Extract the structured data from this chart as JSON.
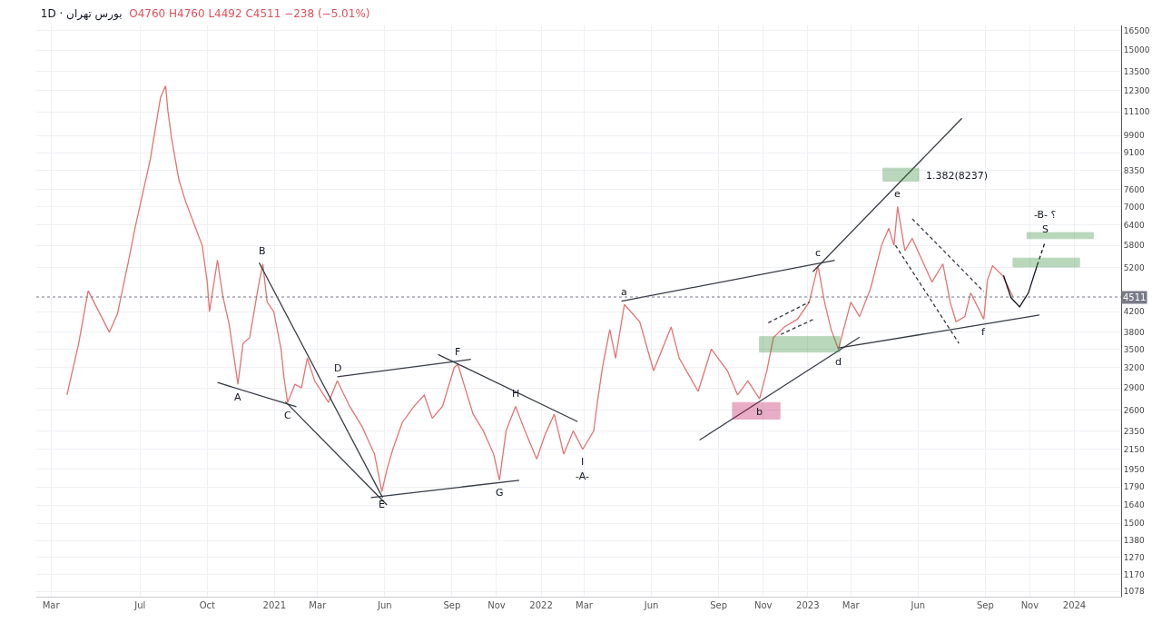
{
  "chart_data": {
    "type": "line",
    "title": "بورس تهران · 1D",
    "subtitle": "O4760 H4760 L4492 C4511 −238 (−5.01%)",
    "log": "y",
    "grid": true,
    "xlim": [
      "2020-02-10",
      "2024-03-05"
    ],
    "ylim": [
      1050,
      16900
    ],
    "xticks": [
      {
        "value": "2020-03-01",
        "label": "Mar"
      },
      {
        "value": "2020-07-01",
        "label": "Jul"
      },
      {
        "value": "2020-10-01",
        "label": "Oct"
      },
      {
        "value": "2021-01-01",
        "label": "2021"
      },
      {
        "value": "2021-03-01",
        "label": "Mar"
      },
      {
        "value": "2021-06-01",
        "label": "Jun"
      },
      {
        "value": "2021-09-01",
        "label": "Sep"
      },
      {
        "value": "2021-11-01",
        "label": "Nov"
      },
      {
        "value": "2022-01-01",
        "label": "2022"
      },
      {
        "value": "2022-03-01",
        "label": "Mar"
      },
      {
        "value": "2022-06-01",
        "label": "Jun"
      },
      {
        "value": "2022-09-01",
        "label": "Sep"
      },
      {
        "value": "2022-11-01",
        "label": "Nov"
      },
      {
        "value": "2023-01-01",
        "label": "2023"
      },
      {
        "value": "2023-03-01",
        "label": "Mar"
      },
      {
        "value": "2023-06-01",
        "label": "Jun"
      },
      {
        "value": "2023-09-01",
        "label": "Sep"
      },
      {
        "value": "2023-11-01",
        "label": "Nov"
      },
      {
        "value": "2024-01-01",
        "label": "2024"
      }
    ],
    "yticks": [
      1078,
      1170,
      1270,
      1380,
      1500,
      1640,
      1790,
      1950,
      2150,
      2350,
      2600,
      2900,
      3200,
      3500,
      3800,
      4200,
      5200,
      5800,
      6400,
      7000,
      7600,
      8350,
      9100,
      9900,
      11100,
      12300,
      13500,
      15000,
      16500
    ],
    "ref_lines": [
      {
        "axis": "y",
        "value": 4511,
        "label": "4511",
        "line_style": "dotted",
        "color": "#787b86"
      }
    ],
    "series": [
      {
        "color": "#e57373",
        "line_style": "solid",
        "x": [
          "2020-03-23",
          "2020-04-08",
          "2020-04-21",
          "2020-05-20",
          "2020-05-31",
          "2020-06-15",
          "2020-06-25",
          "2020-07-15",
          "2020-07-29",
          "2020-08-05",
          "2020-08-08",
          "2020-08-13",
          "2020-08-23",
          "2020-09-01",
          "2020-09-24",
          "2020-10-01",
          "2020-10-04",
          "2020-10-15",
          "2020-10-22",
          "2020-10-31",
          "2020-11-12",
          "2020-11-19",
          "2020-11-28",
          "2020-12-10",
          "2020-12-16",
          "2020-12-22",
          "2020-12-31",
          "2021-01-10",
          "2021-01-14",
          "2021-01-19",
          "2021-01-29",
          "2021-02-07",
          "2021-02-15",
          "2021-02-25",
          "2021-03-16",
          "2021-03-28",
          "2021-04-14",
          "2021-05-01",
          "2021-05-18",
          "2021-05-28",
          "2021-06-04",
          "2021-06-12",
          "2021-06-25",
          "2021-07-11",
          "2021-07-25",
          "2021-08-05",
          "2021-08-19",
          "2021-09-04",
          "2021-09-09",
          "2021-09-16",
          "2021-09-30",
          "2021-10-14",
          "2021-10-28",
          "2021-11-05",
          "2021-11-14",
          "2021-11-27",
          "2021-12-10",
          "2021-12-26",
          "2022-01-06",
          "2022-01-19",
          "2022-02-01",
          "2022-02-14",
          "2022-02-27",
          "2022-03-14",
          "2022-03-19",
          "2022-03-26",
          "2022-04-05",
          "2022-04-13",
          "2022-04-25",
          "2022-05-16",
          "2022-06-04",
          "2022-06-28",
          "2022-07-09",
          "2022-08-04",
          "2022-08-22",
          "2022-09-13",
          "2022-09-27",
          "2022-10-11",
          "2022-10-27",
          "2022-11-06",
          "2022-11-15",
          "2022-11-30",
          "2022-12-18",
          "2023-01-03",
          "2023-01-15",
          "2023-01-24",
          "2023-02-02",
          "2023-02-12",
          "2023-03-01",
          "2023-03-13",
          "2023-03-28",
          "2023-04-12",
          "2023-04-22",
          "2023-04-29",
          "2023-05-04",
          "2023-05-14",
          "2023-05-24",
          "2023-06-10",
          "2023-06-20",
          "2023-07-05",
          "2023-07-15",
          "2023-07-23",
          "2023-08-04",
          "2023-08-12",
          "2023-08-30",
          "2023-09-04",
          "2023-09-11",
          "2023-09-25",
          "2023-10-09"
        ],
        "values": [
          2800,
          3600,
          4650,
          3800,
          4150,
          5350,
          6400,
          8800,
          11900,
          12600,
          11200,
          9800,
          8000,
          7200,
          5800,
          4850,
          4200,
          5400,
          4550,
          3950,
          2950,
          3600,
          3700,
          4750,
          5300,
          4400,
          4200,
          3500,
          3050,
          2700,
          2950,
          2900,
          3350,
          3000,
          2700,
          3000,
          2650,
          2400,
          2100,
          1750,
          1950,
          2150,
          2450,
          2650,
          2800,
          2500,
          2650,
          3200,
          3250,
          3000,
          2550,
          2350,
          2100,
          1850,
          2350,
          2650,
          2350,
          2050,
          2300,
          2550,
          2100,
          2350,
          2150,
          2350,
          2700,
          3200,
          3850,
          3350,
          4350,
          4000,
          3150,
          3900,
          3350,
          2850,
          3500,
          3150,
          2800,
          3000,
          2750,
          3150,
          3700,
          3900,
          4050,
          4400,
          5250,
          4400,
          3850,
          3500,
          4400,
          4100,
          4700,
          5800,
          6300,
          5800,
          7000,
          5650,
          6000,
          5250,
          4850,
          5300,
          4400,
          4000,
          4100,
          4600,
          4050,
          4900,
          5250,
          5000,
          4511
        ]
      },
      {
        "type": "line",
        "color": "#363a45",
        "line_style": "solid",
        "x": [
          "2020-10-15",
          "2021-01-31"
        ],
        "values": [
          2975,
          2645
        ]
      },
      {
        "type": "line",
        "color": "#363a45",
        "line_style": "solid",
        "x": [
          "2020-12-11",
          "2021-05-29"
        ],
        "values": [
          5330,
          1700
        ]
      },
      {
        "type": "line",
        "color": "#363a45",
        "line_style": "solid",
        "x": [
          "2021-01-16",
          "2021-06-04"
        ],
        "values": [
          2710,
          1640
        ]
      },
      {
        "type": "line",
        "color": "#363a45",
        "line_style": "solid",
        "x": [
          "2021-03-28",
          "2021-09-27"
        ],
        "values": [
          3060,
          3330
        ]
      },
      {
        "type": "line",
        "color": "#363a45",
        "line_style": "solid",
        "x": [
          "2021-08-13",
          "2022-02-20"
        ],
        "values": [
          3410,
          2460
        ]
      },
      {
        "type": "line",
        "color": "#363a45",
        "line_style": "solid",
        "x": [
          "2021-05-13",
          "2021-12-02"
        ],
        "values": [
          1700,
          1850
        ]
      },
      {
        "type": "line",
        "color": "#363a45",
        "line_style": "solid",
        "x": [
          "2022-04-21",
          "2023-02-07"
        ],
        "values": [
          4420,
          5390
        ]
      },
      {
        "type": "line",
        "color": "#363a45",
        "line_style": "solid",
        "x": [
          "2022-08-06",
          "2023-03-13"
        ],
        "values": [
          2250,
          3710
        ]
      },
      {
        "type": "line",
        "color": "#363a45",
        "line_style": "solid",
        "x": [
          "2023-01-08",
          "2023-07-31"
        ],
        "values": [
          5100,
          10760
        ]
      },
      {
        "type": "line",
        "color": "#363a45",
        "line_style": "solid",
        "x": [
          "2023-02-12",
          "2023-11-14"
        ],
        "values": [
          3520,
          4130
        ]
      },
      {
        "type": "line",
        "color": "#363a45",
        "line_style": "dashed",
        "x": [
          "2023-05-01",
          "2023-07-27"
        ],
        "values": [
          5800,
          3600
        ]
      },
      {
        "type": "line",
        "color": "#363a45",
        "line_style": "dashed",
        "x": [
          "2023-05-24",
          "2023-08-30"
        ],
        "values": [
          6600,
          4630
        ]
      },
      {
        "type": "line",
        "color": "#363a45",
        "line_style": "dashed",
        "x": [
          "2022-11-08",
          "2023-01-03"
        ],
        "values": [
          3980,
          4400
        ]
      },
      {
        "type": "line",
        "color": "#363a45",
        "line_style": "dashed",
        "x": [
          "2022-11-25",
          "2023-01-08"
        ],
        "values": [
          3760,
          4040
        ]
      },
      {
        "type": "line",
        "color": "#131722",
        "line_style": "solid",
        "x": [
          "2023-09-26",
          "2023-10-06",
          "2023-10-18",
          "2023-10-30",
          "2023-11-11"
        ],
        "values": [
          5010,
          4500,
          4300,
          4600,
          5260
        ]
      },
      {
        "type": "line",
        "color": "#131722",
        "line_style": "dashed",
        "x": [
          "2023-11-11",
          "2023-11-22"
        ],
        "values": [
          5260,
          5900
        ]
      },
      {
        "type": "area",
        "color": "#388e3c",
        "x": [
          "2022-10-27",
          "2023-02-14",
          "2023-02-14",
          "2022-10-27",
          "2022-10-27"
        ],
        "values": [
          3720,
          3720,
          3450,
          3450,
          3720
        ]
      },
      {
        "type": "area",
        "color": "#c2185b",
        "x": [
          "2022-09-20",
          "2022-11-24",
          "2022-11-24",
          "2022-09-20",
          "2022-09-20"
        ],
        "values": [
          2700,
          2700,
          2490,
          2490,
          2700
        ]
      },
      {
        "type": "area",
        "color": "#388e3c",
        "x": [
          "2023-04-14",
          "2023-06-02",
          "2023-06-02",
          "2023-04-14",
          "2023-04-14"
        ],
        "values": [
          8440,
          8440,
          7920,
          7920,
          8440
        ]
      },
      {
        "type": "area",
        "color": "#388e3c",
        "x": [
          "2023-10-09",
          "2024-01-08",
          "2024-01-08",
          "2023-10-09",
          "2023-10-09"
        ],
        "values": [
          5450,
          5450,
          5220,
          5220,
          5450
        ]
      },
      {
        "type": "area",
        "color": "#388e3c",
        "x": [
          "2023-10-28",
          "2024-01-27",
          "2024-01-27",
          "2023-10-28",
          "2023-10-28"
        ],
        "values": [
          6170,
          6170,
          5990,
          5990,
          6170
        ]
      }
    ],
    "annotations": [
      {
        "text": "A",
        "x": "2020-11-12",
        "y": 2950
      },
      {
        "text": "B",
        "x": "2020-12-16",
        "y": 5300
      },
      {
        "text": "C",
        "x": "2021-01-19",
        "y": 2700
      },
      {
        "text": "D",
        "x": "2021-03-28",
        "y": 3000
      },
      {
        "text": "E",
        "x": "2021-05-28",
        "y": 1750
      },
      {
        "text": "F",
        "x": "2021-09-09",
        "y": 3250
      },
      {
        "text": "G",
        "x": "2021-11-05",
        "y": 1850
      },
      {
        "text": "H",
        "x": "2021-11-27",
        "y": 2650
      },
      {
        "text": "I",
        "x": "2022-02-27",
        "y": 2150
      },
      {
        "text": "-A-",
        "x": "2022-02-27",
        "y": 2150
      },
      {
        "text": "a",
        "x": "2022-04-25",
        "y": 4350
      },
      {
        "text": "b",
        "x": "2022-10-27",
        "y": 2750
      },
      {
        "text": "c",
        "x": "2023-01-15",
        "y": 5250
      },
      {
        "text": "d",
        "x": "2023-02-12",
        "y": 3500
      },
      {
        "text": "e",
        "x": "2023-05-04",
        "y": 7000
      },
      {
        "text": "f",
        "x": "2023-08-30",
        "y": 4050
      },
      {
        "text": "1.382(8237)",
        "x": "2023-06-02",
        "y": 8440
      },
      {
        "text": "S",
        "x": "2023-11-22",
        "y": 5900
      },
      {
        "text": "-B- ؟",
        "x": "2023-11-22",
        "y": 5900
      }
    ]
  }
}
